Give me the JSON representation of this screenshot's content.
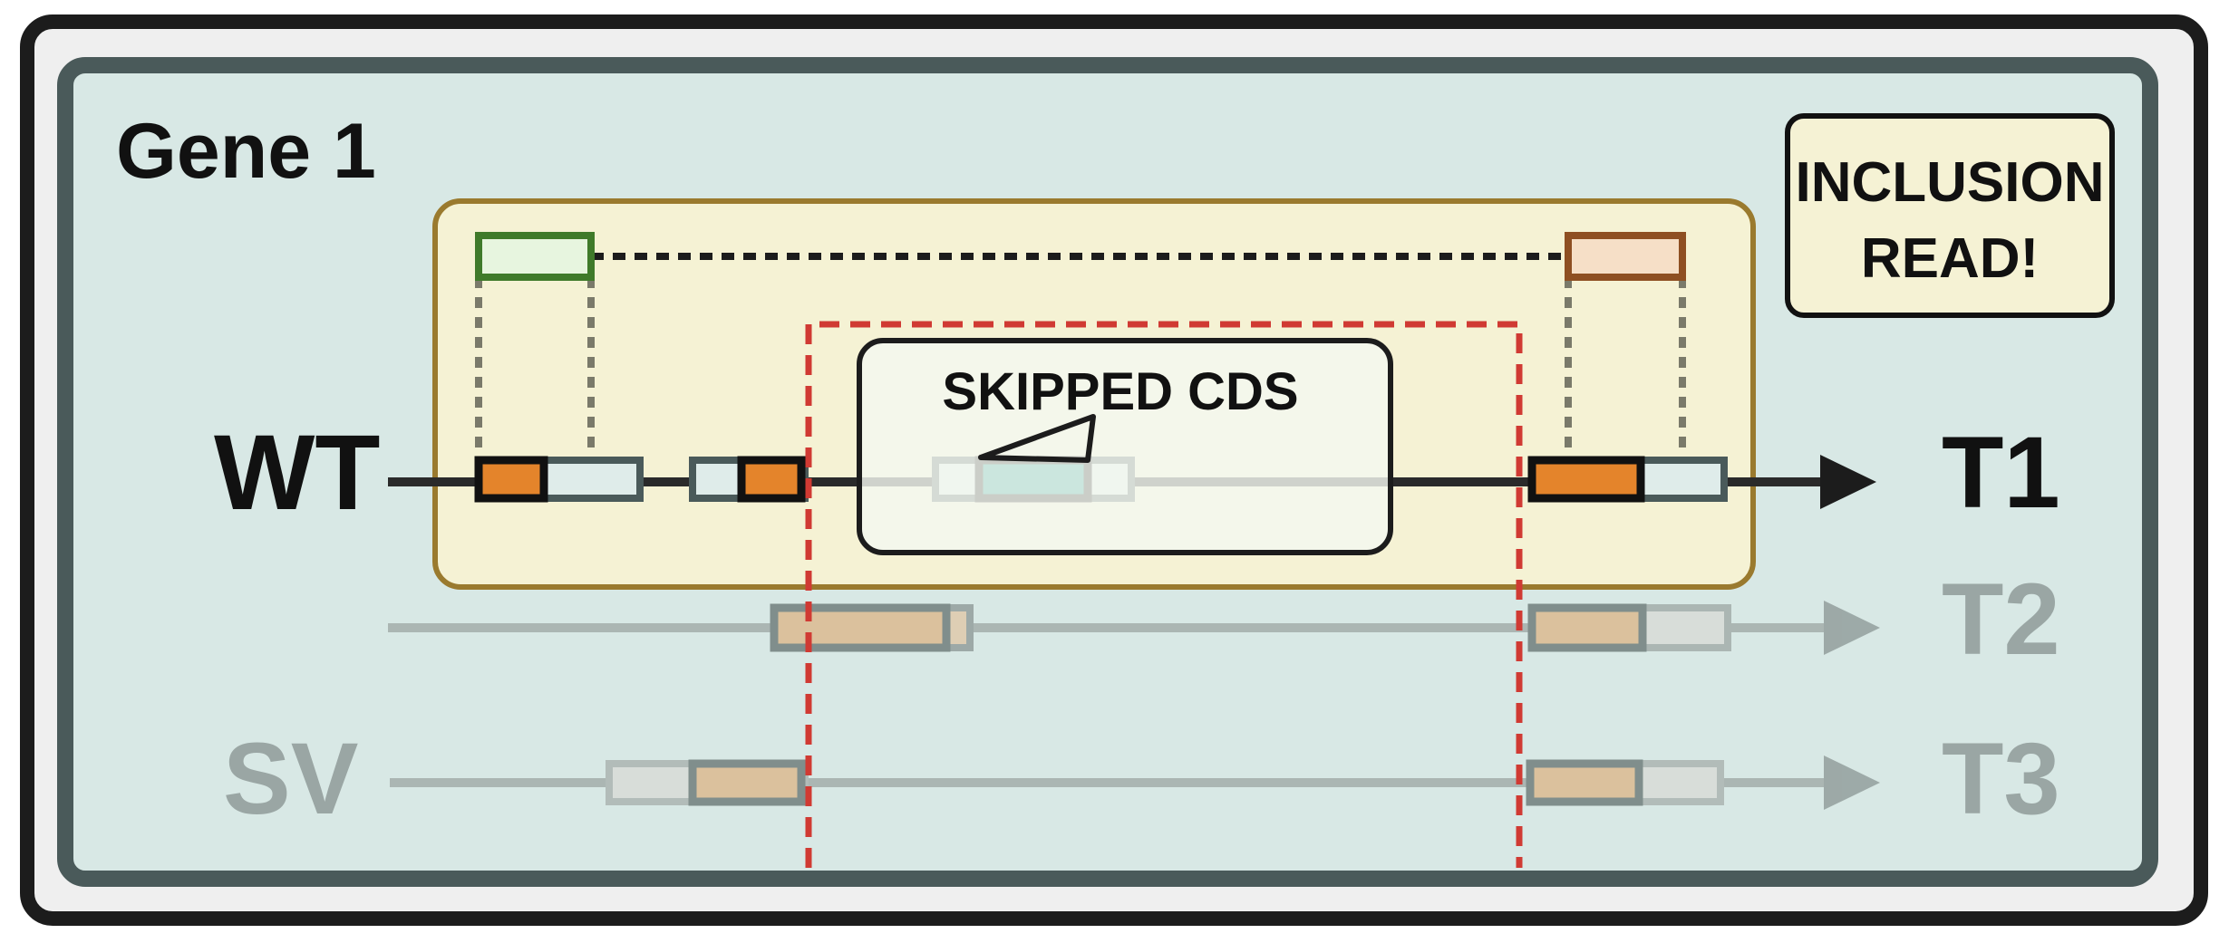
{
  "title": "Gene 1",
  "badge": {
    "line1": "INCLUSION",
    "line2": "READ!"
  },
  "callout": "SKIPPED CDS",
  "row_labels": {
    "wt": "WT",
    "sv": "SV"
  },
  "transcripts": {
    "t1": "T1",
    "t2": "T2",
    "t3": "T3"
  },
  "colors": {
    "outer_frame": "#1c1c1c",
    "outer_fill": "#efefef",
    "panel_border": "#4a5a5a",
    "panel_fill": "#d8e8e5",
    "highlight_border": "#9a7a2e",
    "highlight_fill": "#f5f2d4",
    "cds_orange": "#e4842b",
    "utr_fill": "#dfecea",
    "skipped_teal": "#14978b",
    "read_green": "#3f7a2a",
    "read_brown": "#8e4f22",
    "window_red": "#d03a33",
    "faded_gray": "#9aa6a4"
  },
  "icons": [
    "arrow-head-icon",
    "callout-pointer-icon"
  ]
}
